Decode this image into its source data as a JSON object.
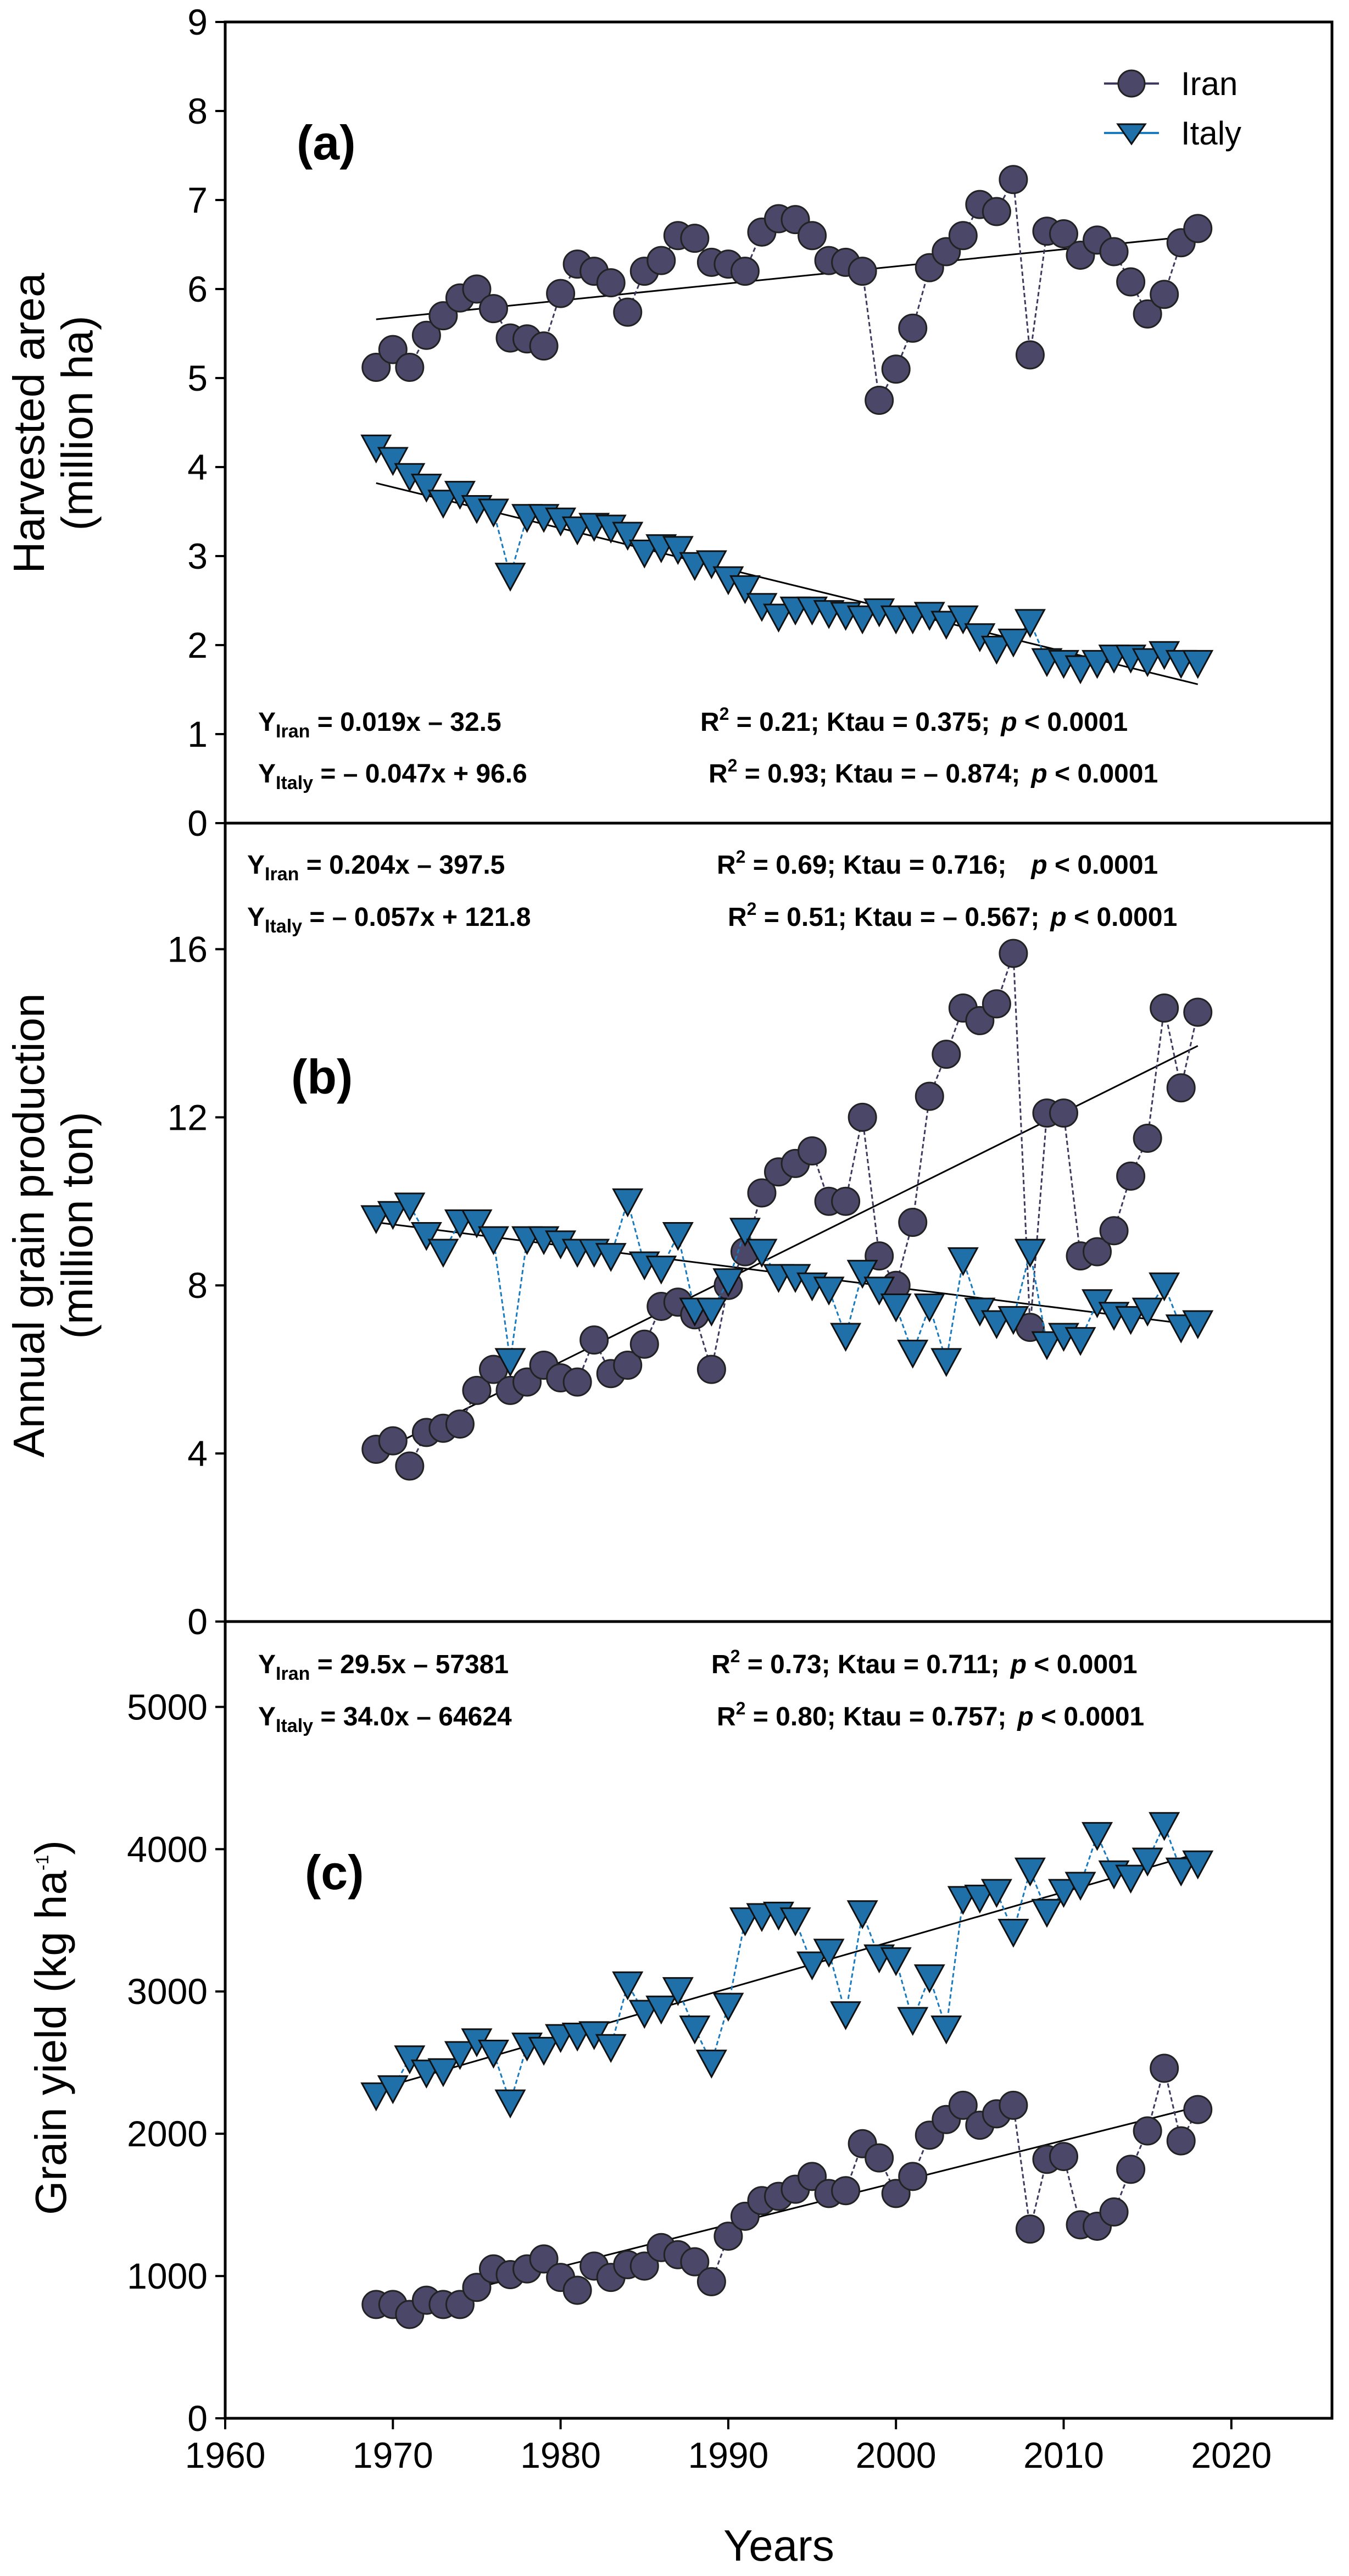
{
  "xlabel": "Years",
  "x_ticks": [
    "1960",
    "1970",
    "1980",
    "1990",
    "2000",
    "2010",
    "2020"
  ],
  "x_tick_values": [
    1960,
    1970,
    1980,
    1990,
    2000,
    2010,
    2020
  ],
  "xlim": [
    1960,
    2026
  ],
  "colors": {
    "iran_fill": "#4a4769",
    "iran_line": "#3d3a5e",
    "italy_fill": "#1f6fa8",
    "italy_line": "#1a7bbf",
    "trend": "#000000"
  },
  "legend": {
    "iran": "Iran",
    "italy": "Italy"
  },
  "chart_data": [
    {
      "id": "a",
      "type": "line",
      "panel_label": "(a)",
      "ylabel_line1": "Harvested area",
      "ylabel_line2": "(million ha)",
      "ylim": [
        0,
        9
      ],
      "y_ticks": [
        "0",
        "1",
        "2",
        "3",
        "4",
        "5",
        "6",
        "7",
        "8",
        "9"
      ],
      "y_tick_values": [
        0,
        1,
        2,
        3,
        4,
        5,
        6,
        7,
        8,
        9
      ],
      "x": [
        1969,
        1970,
        1971,
        1972,
        1973,
        1974,
        1975,
        1976,
        1977,
        1978,
        1979,
        1980,
        1981,
        1982,
        1983,
        1984,
        1985,
        1986,
        1987,
        1988,
        1989,
        1990,
        1991,
        1992,
        1993,
        1994,
        1995,
        1996,
        1997,
        1998,
        1999,
        2000,
        2001,
        2002,
        2003,
        2004,
        2005,
        2006,
        2007,
        2008,
        2009,
        2010,
        2011,
        2012,
        2013,
        2014,
        2015,
        2016,
        2017,
        2018
      ],
      "series": [
        {
          "name": "Iran",
          "values": [
            5.12,
            5.32,
            5.12,
            5.48,
            5.7,
            5.9,
            6.0,
            5.78,
            5.45,
            5.44,
            5.36,
            5.95,
            6.28,
            6.2,
            6.07,
            5.74,
            6.2,
            6.32,
            6.6,
            6.57,
            6.3,
            6.28,
            6.2,
            6.64,
            6.79,
            6.78,
            6.6,
            6.32,
            6.3,
            6.2,
            4.75,
            5.1,
            5.56,
            6.24,
            6.42,
            6.6,
            6.95,
            6.87,
            7.23,
            5.26,
            6.65,
            6.62,
            6.38,
            6.55,
            6.42,
            6.08,
            5.72,
            5.94,
            6.52,
            6.68
          ]
        },
        {
          "name": "Italy",
          "values": [
            4.22,
            4.08,
            3.9,
            3.78,
            3.6,
            3.7,
            3.54,
            3.5,
            2.78,
            3.44,
            3.44,
            3.4,
            3.3,
            3.34,
            3.32,
            3.24,
            3.04,
            3.1,
            3.08,
            2.9,
            2.92,
            2.74,
            2.64,
            2.44,
            2.32,
            2.4,
            2.4,
            2.36,
            2.34,
            2.3,
            2.38,
            2.3,
            2.3,
            2.34,
            2.24,
            2.3,
            2.1,
            1.96,
            2.04,
            2.26,
            1.82,
            1.8,
            1.74,
            1.8,
            1.86,
            1.86,
            1.82,
            1.9,
            1.8,
            1.8
          ]
        }
      ],
      "trend_lines": [
        {
          "series": "Iran",
          "x": [
            1969,
            2018
          ],
          "y": [
            5.66,
            6.6
          ]
        },
        {
          "series": "Italy",
          "x": [
            1969,
            2018
          ],
          "y": [
            3.82,
            1.56
          ]
        }
      ],
      "equations": [
        {
          "series": "Iran",
          "lhs_main": "Y",
          "lhs_sub": "Iran",
          "rhs": " = 0.019x – 32.5",
          "r2_pre": "R",
          "r2_sup": "2",
          "r2_rest": " = 0.21; Ktau = 0.375;",
          "p_italic": "p",
          "p_rest": " < 0.0001"
        },
        {
          "series": "Italy",
          "lhs_main": "Y",
          "lhs_sub": "Italy",
          "rhs": " = – 0.047x + 96.6",
          "r2_pre": "R",
          "r2_sup": "2",
          "r2_rest": " = 0.93; Ktau = – 0.874;",
          "p_italic": "p",
          "p_rest": " < 0.0001"
        }
      ]
    },
    {
      "id": "b",
      "type": "line",
      "panel_label": "(b)",
      "ylabel_line1": "Annual grain production",
      "ylabel_line2": "(million ton)",
      "ylim": [
        0,
        19
      ],
      "y_ticks": [
        "0",
        "4",
        "8",
        "12",
        "16"
      ],
      "y_tick_values": [
        0,
        4,
        8,
        12,
        16
      ],
      "x": [
        1969,
        1970,
        1971,
        1972,
        1973,
        1974,
        1975,
        1976,
        1977,
        1978,
        1979,
        1980,
        1981,
        1982,
        1983,
        1984,
        1985,
        1986,
        1987,
        1988,
        1989,
        1990,
        1991,
        1992,
        1993,
        1994,
        1995,
        1996,
        1997,
        1998,
        1999,
        2000,
        2001,
        2002,
        2003,
        2004,
        2005,
        2006,
        2007,
        2008,
        2009,
        2010,
        2011,
        2012,
        2013,
        2014,
        2015,
        2016,
        2017,
        2018
      ],
      "series": [
        {
          "name": "Iran",
          "values": [
            4.1,
            4.3,
            3.7,
            4.5,
            4.6,
            4.7,
            5.5,
            6.0,
            5.5,
            5.7,
            6.1,
            5.8,
            5.7,
            6.7,
            5.9,
            6.1,
            6.6,
            7.5,
            7.6,
            7.3,
            6.0,
            8.0,
            8.8,
            10.2,
            10.7,
            10.9,
            11.2,
            10.0,
            10.0,
            12.0,
            8.7,
            8.0,
            9.5,
            12.5,
            13.5,
            14.6,
            14.3,
            14.7,
            15.9,
            7.0,
            12.1,
            12.1,
            8.7,
            8.8,
            9.3,
            10.6,
            11.5,
            14.6,
            12.7,
            14.5
          ]
        },
        {
          "name": "Italy",
          "values": [
            9.6,
            9.7,
            9.9,
            9.2,
            8.8,
            9.5,
            9.5,
            9.1,
            6.2,
            9.1,
            9.1,
            9.0,
            8.8,
            8.8,
            8.7,
            10.0,
            8.5,
            8.4,
            9.2,
            7.4,
            7.4,
            8.1,
            9.3,
            8.8,
            8.2,
            8.2,
            8.0,
            7.9,
            6.8,
            8.3,
            7.9,
            7.5,
            6.4,
            7.5,
            6.2,
            8.6,
            7.4,
            7.1,
            7.2,
            8.8,
            6.6,
            6.8,
            6.7,
            7.6,
            7.3,
            7.2,
            7.4,
            8.0,
            7.0,
            7.1
          ]
        }
      ],
      "trend_lines": [
        {
          "series": "Iran",
          "x": [
            1969,
            2018
          ],
          "y": [
            4.0,
            13.7
          ]
        },
        {
          "series": "Italy",
          "x": [
            1969,
            2018
          ],
          "y": [
            9.5,
            7.05
          ]
        }
      ],
      "equations": [
        {
          "series": "Iran",
          "lhs_main": "Y",
          "lhs_sub": "Iran",
          "rhs": " = 0.204x – 397.5",
          "r2_pre": "R",
          "r2_sup": "2",
          "r2_rest": " = 0.69; Ktau = 0.716;",
          "p_italic": "p",
          "p_rest": " < 0.0001"
        },
        {
          "series": "Italy",
          "lhs_main": "Y",
          "lhs_sub": "Italy",
          "rhs": " = – 0.057x + 121.8",
          "r2_pre": "R",
          "r2_sup": "2",
          "r2_rest": " = 0.51; Ktau = – 0.567;",
          "p_italic": "p",
          "p_rest": " < 0.0001"
        }
      ]
    },
    {
      "id": "c",
      "type": "line",
      "panel_label": "(c)",
      "ylabel_line1": "Grain yield (kg ha",
      "ylabel_sup": "-1",
      "ylabel_close": ")",
      "ylim": [
        0,
        5600
      ],
      "y_ticks": [
        "0",
        "1000",
        "2000",
        "3000",
        "4000",
        "5000"
      ],
      "y_tick_values": [
        0,
        1000,
        2000,
        3000,
        4000,
        5000
      ],
      "x": [
        1969,
        1970,
        1971,
        1972,
        1973,
        1974,
        1975,
        1976,
        1977,
        1978,
        1979,
        1980,
        1981,
        1982,
        1983,
        1984,
        1985,
        1986,
        1987,
        1988,
        1989,
        1990,
        1991,
        1992,
        1993,
        1994,
        1995,
        1996,
        1997,
        1998,
        1999,
        2000,
        2001,
        2002,
        2003,
        2004,
        2005,
        2006,
        2007,
        2008,
        2009,
        2010,
        2011,
        2012,
        2013,
        2014,
        2015,
        2016,
        2017,
        2018
      ],
      "series": [
        {
          "name": "Iran",
          "values": [
            800,
            800,
            730,
            830,
            800,
            800,
            920,
            1050,
            1010,
            1050,
            1120,
            990,
            900,
            1070,
            990,
            1080,
            1070,
            1200,
            1150,
            1100,
            960,
            1280,
            1420,
            1530,
            1560,
            1610,
            1700,
            1580,
            1600,
            1930,
            1830,
            1580,
            1700,
            1990,
            2100,
            2200,
            2060,
            2140,
            2200,
            1330,
            1820,
            1840,
            1360,
            1350,
            1450,
            1750,
            2020,
            2460,
            1950,
            2170
          ]
        },
        {
          "name": "Italy",
          "values": [
            2270,
            2320,
            2530,
            2430,
            2440,
            2560,
            2650,
            2570,
            2220,
            2620,
            2590,
            2680,
            2690,
            2700,
            2610,
            3050,
            2850,
            2880,
            3010,
            2740,
            2500,
            2900,
            3500,
            3530,
            3540,
            3500,
            3190,
            3280,
            2840,
            3550,
            3240,
            3220,
            2800,
            3100,
            2740,
            3650,
            3660,
            3700,
            3420,
            3850,
            3560,
            3700,
            3750,
            4100,
            3830,
            3800,
            3920,
            4170,
            3850,
            3900
          ]
        }
      ],
      "trend_lines": [
        {
          "series": "Iran",
          "x": [
            1969,
            2018
          ],
          "y": [
            740,
            2190
          ]
        },
        {
          "series": "Italy",
          "x": [
            1969,
            2018
          ],
          "y": [
            2310,
            3970
          ]
        }
      ],
      "equations": [
        {
          "series": "Iran",
          "lhs_main": "Y",
          "lhs_sub": "Iran",
          "rhs": " = 29.5x – 57381",
          "r2_pre": "R",
          "r2_sup": "2",
          "r2_rest": " = 0.73; Ktau = 0.711;",
          "p_italic": "p",
          "p_rest": " < 0.0001"
        },
        {
          "series": "Italy",
          "lhs_main": "Y",
          "lhs_sub": "Italy",
          "rhs": " = 34.0x – 64624",
          "r2_pre": "R",
          "r2_sup": "2",
          "r2_rest": " = 0.80; Ktau = 0.757;",
          "p_italic": "p",
          "p_rest": " < 0.0001"
        }
      ]
    }
  ]
}
